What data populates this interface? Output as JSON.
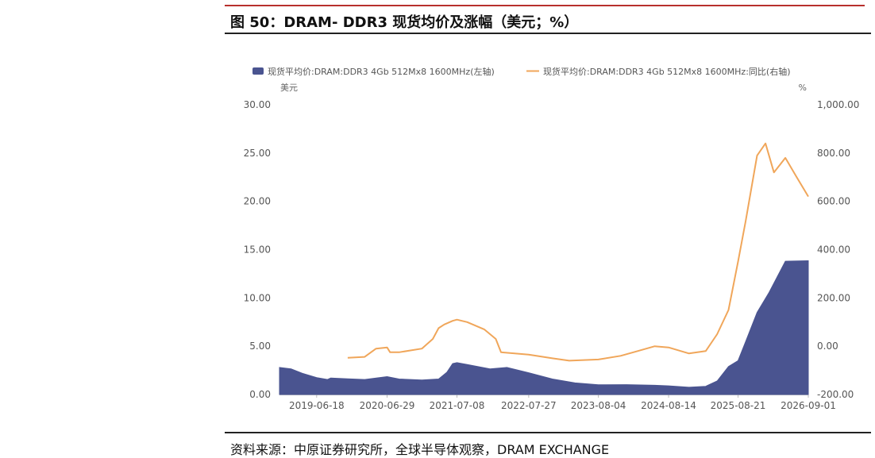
{
  "figure": {
    "title": "图 50：DRAM- DDR3 现货均价及涨幅（美元；%）",
    "source": "资料来源：中原证券研究所，全球半导体观察，DRAM EXCHANGE"
  },
  "chart_data": {
    "type": "area",
    "colors": {
      "price": "#4a5490",
      "yoy": "#f0a65a"
    },
    "legend_position": "top",
    "left_unit": "美元",
    "right_unit": "%",
    "x_tick_labels": [
      "2019-06-18",
      "2020-06-29",
      "2021-07-08",
      "2022-07-27",
      "2023-08-04",
      "2024-08-14",
      "2025-08-21",
      "2026-09-01"
    ],
    "x_range": [
      "2018-12-01",
      "2026-09-01"
    ],
    "y_left": {
      "min": 0,
      "max": 30,
      "ticks": [
        "0.00",
        "5.00",
        "10.00",
        "15.00",
        "20.00",
        "25.00",
        "30.00"
      ]
    },
    "y_right": {
      "min": -200,
      "max": 1000,
      "ticks": [
        "-200.00",
        "0.00",
        "200.00",
        "400.00",
        "600.00",
        "800.00",
        "1,000.00"
      ]
    },
    "series": [
      {
        "name": "现货平均价:DRAM:DDR3 4Gb 512Mx8 1600MHz(左轴)",
        "axis": "left",
        "kind": "area",
        "points": [
          [
            "2018-12-01",
            2.8
          ],
          [
            "2019-02-01",
            2.65
          ],
          [
            "2019-04-01",
            2.2
          ],
          [
            "2019-06-18",
            1.75
          ],
          [
            "2019-08-15",
            1.55
          ],
          [
            "2019-09-01",
            1.7
          ],
          [
            "2019-12-01",
            1.62
          ],
          [
            "2020-03-01",
            1.55
          ],
          [
            "2020-06-29",
            1.85
          ],
          [
            "2020-09-01",
            1.6
          ],
          [
            "2021-01-01",
            1.5
          ],
          [
            "2021-04-01",
            1.6
          ],
          [
            "2021-05-15",
            2.3
          ],
          [
            "2021-06-15",
            3.2
          ],
          [
            "2021-07-08",
            3.3
          ],
          [
            "2021-09-01",
            3.1
          ],
          [
            "2022-01-01",
            2.65
          ],
          [
            "2022-04-01",
            2.8
          ],
          [
            "2022-07-27",
            2.25
          ],
          [
            "2022-12-01",
            1.6
          ],
          [
            "2023-04-01",
            1.2
          ],
          [
            "2023-08-04",
            1.0
          ],
          [
            "2024-01-01",
            1.02
          ],
          [
            "2024-06-01",
            0.95
          ],
          [
            "2024-08-14",
            0.9
          ],
          [
            "2024-12-01",
            0.75
          ],
          [
            "2025-03-01",
            0.85
          ],
          [
            "2025-05-01",
            1.4
          ],
          [
            "2025-07-01",
            2.9
          ],
          [
            "2025-08-21",
            3.5
          ],
          [
            "2025-10-01",
            5.5
          ],
          [
            "2025-12-01",
            8.5
          ],
          [
            "2026-02-01",
            10.5
          ],
          [
            "2026-05-01",
            13.8
          ],
          [
            "2026-09-01",
            13.85
          ]
        ]
      },
      {
        "name": "现货平均价:DRAM:DDR3 4Gb 512Mx8 1600MHz:同比(右轴)",
        "axis": "right",
        "kind": "line",
        "points": [
          [
            "2019-12-01",
            -48
          ],
          [
            "2020-03-01",
            -44
          ],
          [
            "2020-05-01",
            -10
          ],
          [
            "2020-06-29",
            -5
          ],
          [
            "2020-07-15",
            -25
          ],
          [
            "2020-09-01",
            -25
          ],
          [
            "2021-01-01",
            -10
          ],
          [
            "2021-03-01",
            30
          ],
          [
            "2021-04-01",
            75
          ],
          [
            "2021-05-01",
            90
          ],
          [
            "2021-06-15",
            105
          ],
          [
            "2021-07-08",
            110
          ],
          [
            "2021-09-01",
            100
          ],
          [
            "2021-12-01",
            70
          ],
          [
            "2022-02-01",
            30
          ],
          [
            "2022-03-01",
            -25
          ],
          [
            "2022-07-27",
            -35
          ],
          [
            "2022-12-01",
            -50
          ],
          [
            "2023-03-01",
            -60
          ],
          [
            "2023-08-04",
            -55
          ],
          [
            "2023-12-01",
            -40
          ],
          [
            "2024-03-01",
            -20
          ],
          [
            "2024-06-01",
            0
          ],
          [
            "2024-08-14",
            -5
          ],
          [
            "2024-12-01",
            -30
          ],
          [
            "2025-03-01",
            -20
          ],
          [
            "2025-05-01",
            50
          ],
          [
            "2025-07-01",
            150
          ],
          [
            "2025-08-21",
            350
          ],
          [
            "2025-10-01",
            520
          ],
          [
            "2025-12-01",
            790
          ],
          [
            "2026-01-15",
            840
          ],
          [
            "2026-03-01",
            720
          ],
          [
            "2026-05-01",
            780
          ],
          [
            "2026-07-01",
            700
          ],
          [
            "2026-09-01",
            620
          ]
        ]
      }
    ]
  }
}
